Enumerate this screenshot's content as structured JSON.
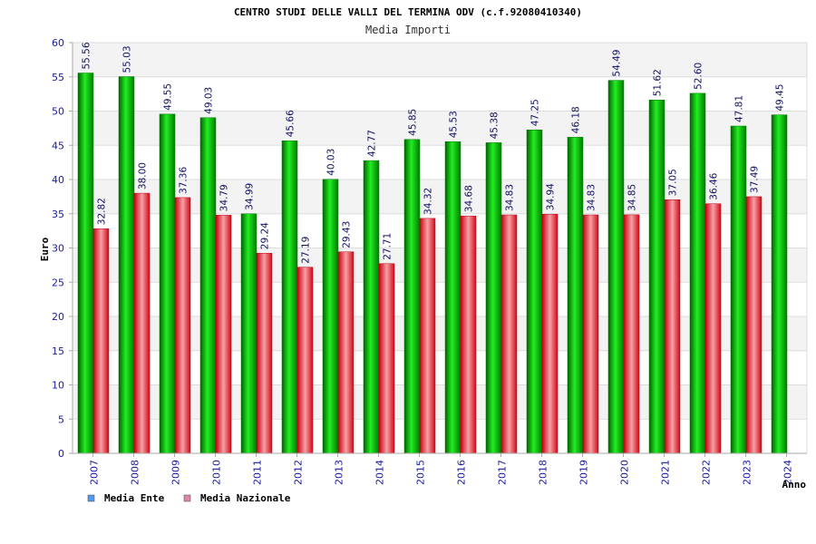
{
  "chart_data": {
    "type": "bar",
    "title": "CENTRO STUDI DELLE VALLI DEL TERMINA ODV (c.f.92080410340)",
    "subtitle": "Media Importi",
    "xlabel": "Anno",
    "ylabel": "Euro",
    "ylim": [
      0,
      60
    ],
    "yticks": [
      0,
      5,
      10,
      15,
      20,
      25,
      30,
      35,
      40,
      45,
      50,
      55,
      60
    ],
    "grid": true,
    "legend_position": "bottom-left",
    "categories": [
      "2007",
      "2008",
      "2009",
      "2010",
      "2011",
      "2012",
      "2013",
      "2014",
      "2015",
      "2016",
      "2017",
      "2018",
      "2019",
      "2020",
      "2021",
      "2022",
      "2023",
      "2024"
    ],
    "series": [
      {
        "name": "Media Ente",
        "color": "#00c000",
        "legend_color": "#5599ee",
        "values": [
          55.56,
          55.03,
          49.55,
          49.03,
          34.99,
          45.66,
          40.03,
          42.77,
          45.85,
          45.53,
          45.38,
          47.25,
          46.18,
          54.49,
          51.62,
          52.6,
          47.81,
          49.45
        ],
        "labels": [
          "55.56",
          "55.03",
          "49.55",
          "49.03",
          "34.99",
          "45.66",
          "40.03",
          "42.77",
          "45.85",
          "45.53",
          "45.38",
          "47.25",
          "46.18",
          "54.49",
          "51.62",
          "52.60",
          "47.81",
          "49.45"
        ]
      },
      {
        "name": "Media Nazionale",
        "color": "#e8202a",
        "legend_color": "#dd88aa",
        "values": [
          32.82,
          38.0,
          37.36,
          34.79,
          29.24,
          27.19,
          29.43,
          27.71,
          34.32,
          34.68,
          34.83,
          34.94,
          34.83,
          34.85,
          37.05,
          36.46,
          37.49,
          null
        ],
        "labels": [
          "32.82",
          "38.00",
          "37.36",
          "34.79",
          "29.24",
          "27.19",
          "29.43",
          "27.71",
          "34.32",
          "34.68",
          "34.83",
          "34.94",
          "34.83",
          "34.85",
          "37.05",
          "36.46",
          "37.49",
          null
        ]
      }
    ]
  }
}
